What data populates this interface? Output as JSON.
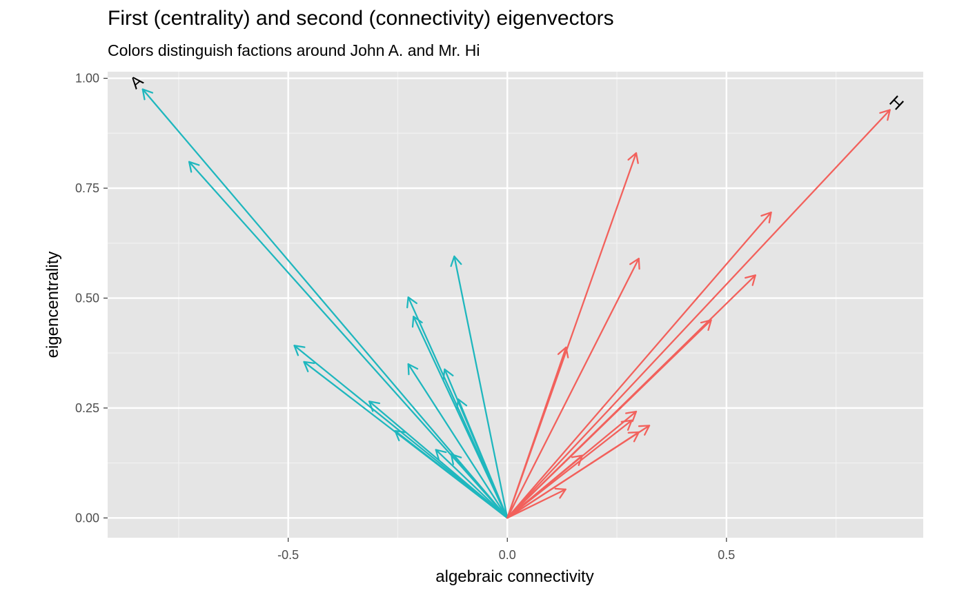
{
  "title": "First (centrality) and second (connectivity) eigenvectors",
  "subtitle": "Colors distinguish factions around John A. and Mr. Hi",
  "chart_data": {
    "type": "scatter",
    "title": "First (centrality) and second (connectivity) eigenvectors",
    "subtitle": "Colors distinguish factions around John A. and Mr. Hi",
    "xlabel": "algebraic connectivity",
    "ylabel": "eigencentrality",
    "xlim": [
      -0.912,
      0.949
    ],
    "ylim": [
      -0.045,
      1.015
    ],
    "x_ticks": [
      -0.5,
      0.0,
      0.5
    ],
    "x_tick_labels": [
      "-0.5",
      "0.0",
      "0.5"
    ],
    "y_ticks": [
      0.0,
      0.25,
      0.5,
      0.75,
      1.0
    ],
    "y_tick_labels": [
      "0.00",
      "0.25",
      "0.50",
      "0.75",
      "1.00"
    ],
    "grid": true,
    "legend": "none",
    "colors": {
      "john_a": "#1fb7be",
      "mr_hi": "#f2615c",
      "panel": "#e5e5e5",
      "grid": "#ffffff"
    },
    "series": [
      {
        "faction": "john_a",
        "color": "#1fb7be",
        "points": [
          {
            "x": -0.832,
            "y": 0.975,
            "label": "A"
          },
          {
            "x": -0.726,
            "y": 0.81
          },
          {
            "x": -0.486,
            "y": 0.392
          },
          {
            "x": -0.464,
            "y": 0.355
          },
          {
            "x": -0.315,
            "y": 0.265
          },
          {
            "x": -0.256,
            "y": 0.198
          },
          {
            "x": -0.226,
            "y": 0.502
          },
          {
            "x": -0.214,
            "y": 0.458
          },
          {
            "x": -0.226,
            "y": 0.35
          },
          {
            "x": -0.163,
            "y": 0.155
          },
          {
            "x": -0.143,
            "y": 0.338
          },
          {
            "x": -0.121,
            "y": 0.595
          },
          {
            "x": -0.112,
            "y": 0.27
          },
          {
            "x": -0.128,
            "y": 0.145
          }
        ]
      },
      {
        "faction": "mr_hi",
        "color": "#f2615c",
        "points": [
          {
            "x": 0.873,
            "y": 0.928,
            "label": "H"
          },
          {
            "x": 0.294,
            "y": 0.83
          },
          {
            "x": 0.3,
            "y": 0.59
          },
          {
            "x": 0.602,
            "y": 0.695
          },
          {
            "x": 0.566,
            "y": 0.552
          },
          {
            "x": 0.465,
            "y": 0.45
          },
          {
            "x": 0.134,
            "y": 0.388
          },
          {
            "x": 0.294,
            "y": 0.242
          },
          {
            "x": 0.284,
            "y": 0.222
          },
          {
            "x": 0.324,
            "y": 0.21
          },
          {
            "x": 0.3,
            "y": 0.195
          },
          {
            "x": 0.171,
            "y": 0.142
          },
          {
            "x": 0.133,
            "y": 0.065
          }
        ]
      }
    ]
  }
}
